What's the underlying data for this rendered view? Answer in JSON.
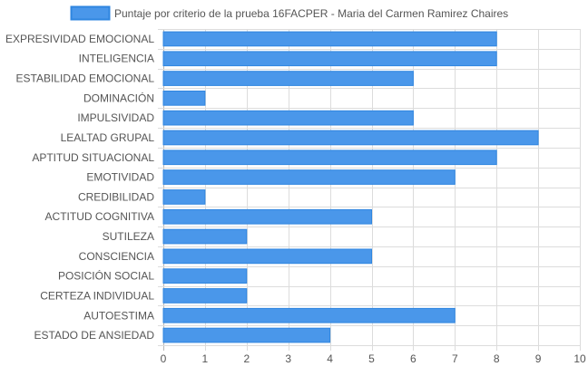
{
  "colors": {
    "bar_fill": "#4a97ea",
    "bar_stroke": "#2f86e0",
    "grid": "#dcdcdc",
    "axis_text": "#555555",
    "legend_text": "#555555"
  },
  "chart_data": {
    "type": "bar",
    "orientation": "horizontal",
    "title": "",
    "xlabel": "",
    "ylabel": "",
    "xlim": [
      0,
      10
    ],
    "x_ticks": [
      0,
      1,
      2,
      3,
      4,
      5,
      6,
      7,
      8,
      9,
      10
    ],
    "grid": true,
    "legend_position": "top-center",
    "categories": [
      "EXPRESIVIDAD EMOCIONAL",
      "INTELIGENCIA",
      "ESTABILIDAD EMOCIONAL",
      "DOMINACIÓN",
      "IMPULSIVIDAD",
      "LEALTAD GRUPAL",
      "APTITUD SITUACIONAL",
      "EMOTIVIDAD",
      "CREDIBILIDAD",
      "ACTITUD COGNITIVA",
      "SUTILEZA",
      "CONSCIENCIA",
      "POSICIÓN SOCIAL",
      "CERTEZA INDIVIDUAL",
      "AUTOESTIMA",
      "ESTADO DE ANSIEDAD"
    ],
    "series": [
      {
        "name": "Puntaje por criterio de la prueba 16FACPER - Maria del Carmen Ramirez Chaires",
        "values": [
          8,
          8,
          6,
          1,
          6,
          9,
          8,
          7,
          1,
          5,
          2,
          5,
          2,
          2,
          7,
          4
        ]
      }
    ]
  }
}
